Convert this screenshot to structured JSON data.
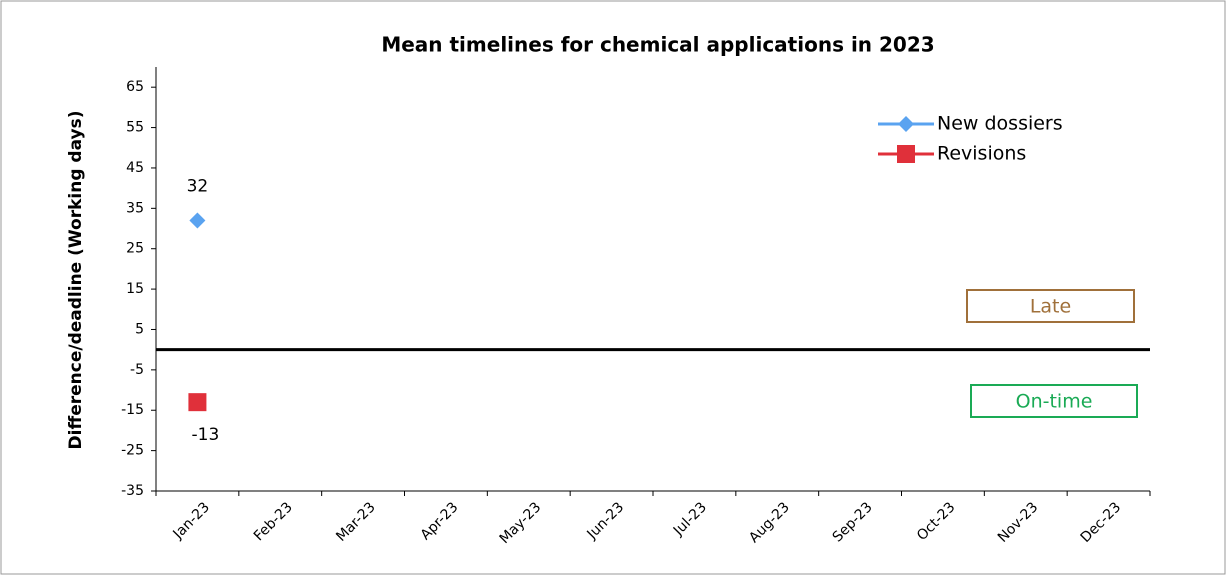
{
  "chart_data": {
    "type": "line",
    "title": "Mean timelines for chemical applications in 2023",
    "y_label": "Difference/deadline (Working days)",
    "categories": [
      "Jan-23",
      "Feb-23",
      "Mar-23",
      "Apr-23",
      "May-23",
      "Jun-23",
      "Jul-23",
      "Aug-23",
      "Sep-23",
      "Oct-23",
      "Nov-23",
      "Dec-23"
    ],
    "series": [
      {
        "name": "New dossiers",
        "color": "#5aa3f0",
        "marker": "diamond",
        "values": [
          32,
          null,
          null,
          null,
          null,
          null,
          null,
          null,
          null,
          null,
          null,
          null
        ]
      },
      {
        "name": "Revisions",
        "color": "#e0303a",
        "marker": "square",
        "values": [
          -13,
          null,
          null,
          null,
          null,
          null,
          null,
          null,
          null,
          null,
          null,
          null
        ]
      }
    ],
    "ylim": [
      -35,
      70
    ],
    "yticks": [
      -35,
      -25,
      -15,
      -5,
      5,
      15,
      25,
      35,
      45,
      55,
      65
    ],
    "reference_line": 0,
    "annotations": [
      "Late",
      "On-time"
    ],
    "legend": "top-right"
  }
}
